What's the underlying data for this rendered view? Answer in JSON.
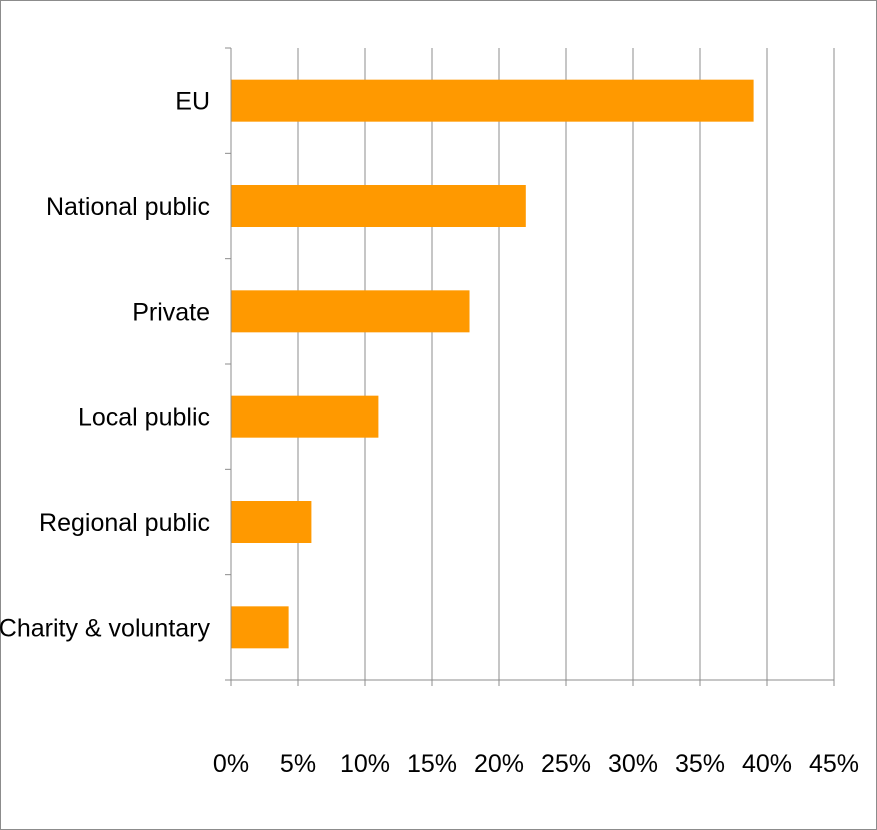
{
  "chart_data": {
    "type": "bar",
    "orientation": "horizontal",
    "title": "",
    "xlabel": "",
    "ylabel": "",
    "categories": [
      "EU",
      "National public",
      "Private",
      "Local public",
      "Regional public",
      "Charity & voluntary"
    ],
    "values": [
      39,
      22,
      17.8,
      11,
      6,
      4.3
    ],
    "unit": "%",
    "xlim": [
      0,
      45
    ],
    "x_ticks": [
      0,
      5,
      10,
      15,
      20,
      25,
      30,
      35,
      40,
      45
    ],
    "x_tick_labels": [
      "0%",
      "5%",
      "10%",
      "15%",
      "20%",
      "25%",
      "30%",
      "35%",
      "40%",
      "45%"
    ],
    "grid": "vertical",
    "legend": "none",
    "bar_color": "#ff9900",
    "grid_color": "#8c8c8c",
    "frame_color": "#8c8c8c"
  }
}
